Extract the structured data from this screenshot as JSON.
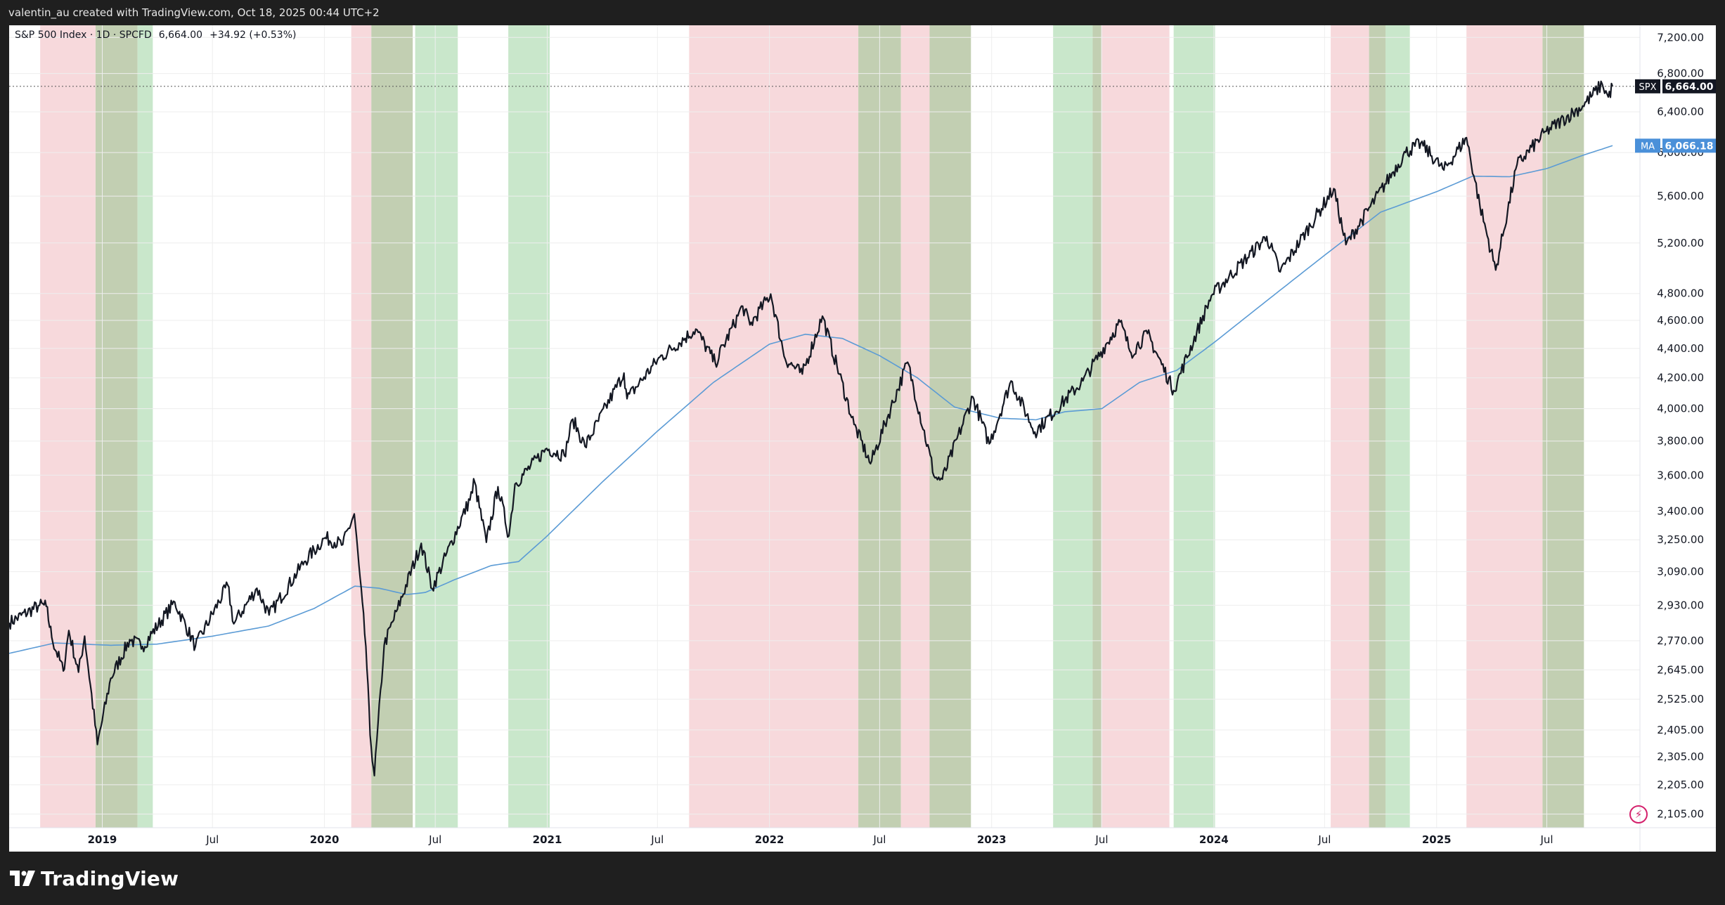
{
  "header": {
    "attribution": "valentin_au created with TradingView.com, Oct 18, 2025 00:44 UTC+2"
  },
  "legend": {
    "symbol": "S&P 500 Index · 1D · SPCFD",
    "last": "6,664.00",
    "change": "+34.92 (+0.53%)"
  },
  "footer": {
    "brand": "TradingView"
  },
  "colors": {
    "price": "#131722",
    "ma": "#5b9bd5",
    "red_band": "#f7d9dc",
    "green_band": "#c9e7cb",
    "overlap_band": "#c2cfb2",
    "grid": "#eeeeee",
    "spx_tag": "#131722",
    "ma_tag": "#4a90d9"
  },
  "chart_data": {
    "type": "line",
    "x_range": [
      "2018-08-01",
      "2025-12-01"
    ],
    "y_scale": "log",
    "y_range": [
      2060,
      7340
    ],
    "y_ticks": [
      2105,
      2205,
      2305,
      2405,
      2525,
      2645,
      2770,
      2930,
      3090,
      3250,
      3400,
      3600,
      3800,
      4000,
      4200,
      4400,
      4600,
      4800,
      5200,
      5600,
      6000,
      6400,
      6800,
      7200
    ],
    "y_tick_labels": [
      "2,105.00",
      "2,205.00",
      "2,305.00",
      "2,405.00",
      "2,525.00",
      "2,645.00",
      "2,770.00",
      "2,930.00",
      "3,090.00",
      "3,250.00",
      "3,400.00",
      "3,600.00",
      "3,800.00",
      "4,000.00",
      "4,200.00",
      "4,400.00",
      "4,600.00",
      "4,800.00",
      "5,200.00",
      "5,600.00",
      "6,000.00",
      "6,400.00",
      "6,800.00",
      "7,200.00"
    ],
    "x_ticks": [
      {
        "date": "2019-01-01",
        "label": "2019",
        "major": true
      },
      {
        "date": "2019-07-01",
        "label": "Jul",
        "major": false
      },
      {
        "date": "2020-01-01",
        "label": "2020",
        "major": true
      },
      {
        "date": "2020-07-01",
        "label": "Jul",
        "major": false
      },
      {
        "date": "2021-01-01",
        "label": "2021",
        "major": true
      },
      {
        "date": "2021-07-01",
        "label": "Jul",
        "major": false
      },
      {
        "date": "2022-01-01",
        "label": "2022",
        "major": true
      },
      {
        "date": "2022-07-01",
        "label": "Jul",
        "major": false
      },
      {
        "date": "2023-01-01",
        "label": "2023",
        "major": true
      },
      {
        "date": "2023-07-01",
        "label": "Jul",
        "major": false
      },
      {
        "date": "2024-01-01",
        "label": "2024",
        "major": true
      },
      {
        "date": "2024-07-01",
        "label": "Jul",
        "major": false
      },
      {
        "date": "2025-01-01",
        "label": "2025",
        "major": true
      },
      {
        "date": "2025-07-01",
        "label": "Jul",
        "major": false
      }
    ],
    "bands": [
      {
        "start": "2018-09-21",
        "end": "2018-12-21",
        "color": "red"
      },
      {
        "start": "2018-12-21",
        "end": "2019-02-28",
        "color": "overlap"
      },
      {
        "start": "2019-02-28",
        "end": "2019-03-25",
        "color": "green"
      },
      {
        "start": "2020-02-14",
        "end": "2020-03-18",
        "color": "red"
      },
      {
        "start": "2020-03-18",
        "end": "2020-05-25",
        "color": "overlap"
      },
      {
        "start": "2020-05-29",
        "end": "2020-08-07",
        "color": "green"
      },
      {
        "start": "2020-10-29",
        "end": "2021-01-05",
        "color": "green"
      },
      {
        "start": "2021-08-22",
        "end": "2022-05-27",
        "color": "red"
      },
      {
        "start": "2022-05-27",
        "end": "2022-08-05",
        "color": "overlap"
      },
      {
        "start": "2022-08-05",
        "end": "2022-09-21",
        "color": "red"
      },
      {
        "start": "2022-09-21",
        "end": "2022-11-28",
        "color": "overlap"
      },
      {
        "start": "2023-04-12",
        "end": "2023-06-16",
        "color": "green"
      },
      {
        "start": "2023-06-16",
        "end": "2023-06-30",
        "color": "overlap"
      },
      {
        "start": "2023-06-30",
        "end": "2023-10-20",
        "color": "red"
      },
      {
        "start": "2023-10-27",
        "end": "2024-01-03",
        "color": "green"
      },
      {
        "start": "2024-07-11",
        "end": "2024-09-12",
        "color": "red"
      },
      {
        "start": "2024-09-12",
        "end": "2024-10-09",
        "color": "overlap"
      },
      {
        "start": "2024-10-09",
        "end": "2024-11-18",
        "color": "green"
      },
      {
        "start": "2025-02-19",
        "end": "2025-06-24",
        "color": "red"
      },
      {
        "start": "2025-06-24",
        "end": "2025-08-31",
        "color": "overlap"
      }
    ],
    "series": [
      {
        "name": "SPX",
        "label": "SPX",
        "last_label": "6,664.00",
        "points": [
          [
            "2018-08-01",
            2850
          ],
          [
            "2018-09-20",
            2930
          ],
          [
            "2018-10-01",
            2925
          ],
          [
            "2018-10-10",
            2785
          ],
          [
            "2018-10-29",
            2640
          ],
          [
            "2018-11-07",
            2815
          ],
          [
            "2018-11-23",
            2635
          ],
          [
            "2018-12-03",
            2790
          ],
          [
            "2018-12-24",
            2350
          ],
          [
            "2019-01-15",
            2610
          ],
          [
            "2019-02-15",
            2775
          ],
          [
            "2019-03-08",
            2745
          ],
          [
            "2019-04-30",
            2945
          ],
          [
            "2019-06-03",
            2745
          ],
          [
            "2019-07-26",
            3025
          ],
          [
            "2019-08-05",
            2845
          ],
          [
            "2019-09-12",
            3010
          ],
          [
            "2019-10-02",
            2885
          ],
          [
            "2019-11-29",
            3140
          ],
          [
            "2020-01-02",
            3260
          ],
          [
            "2020-01-31",
            3225
          ],
          [
            "2020-02-19",
            3386
          ],
          [
            "2020-03-09",
            2745
          ],
          [
            "2020-03-16",
            2386
          ],
          [
            "2020-03-23",
            2237
          ],
          [
            "2020-04-08",
            2750
          ],
          [
            "2020-04-30",
            2912
          ],
          [
            "2020-06-08",
            3232
          ],
          [
            "2020-06-26",
            3009
          ],
          [
            "2020-08-31",
            3500
          ],
          [
            "2020-09-02",
            3580
          ],
          [
            "2020-09-23",
            3237
          ],
          [
            "2020-10-12",
            3535
          ],
          [
            "2020-10-30",
            3270
          ],
          [
            "2020-11-09",
            3550
          ],
          [
            "2020-12-31",
            3756
          ],
          [
            "2021-01-29",
            3714
          ],
          [
            "2021-02-12",
            3934
          ],
          [
            "2021-03-04",
            3768
          ],
          [
            "2021-05-07",
            4232
          ],
          [
            "2021-05-12",
            4063
          ],
          [
            "2021-07-01",
            4320
          ],
          [
            "2021-09-02",
            4537
          ],
          [
            "2021-10-04",
            4300
          ],
          [
            "2021-11-18",
            4705
          ],
          [
            "2021-11-30",
            4567
          ],
          [
            "2022-01-03",
            4796
          ],
          [
            "2022-01-27",
            4326
          ],
          [
            "2022-02-24",
            4225
          ],
          [
            "2022-03-29",
            4631
          ],
          [
            "2022-05-20",
            3901
          ],
          [
            "2022-06-16",
            3666
          ],
          [
            "2022-08-16",
            4305
          ],
          [
            "2022-09-30",
            3585
          ],
          [
            "2022-10-12",
            3577
          ],
          [
            "2022-12-01",
            4076
          ],
          [
            "2022-12-28",
            3783
          ],
          [
            "2023-02-02",
            4179
          ],
          [
            "2023-03-13",
            3855
          ],
          [
            "2023-05-31",
            4180
          ],
          [
            "2023-07-31",
            4588
          ],
          [
            "2023-08-18",
            4370
          ],
          [
            "2023-09-14",
            4505
          ],
          [
            "2023-10-27",
            4117
          ],
          [
            "2023-12-28",
            4783
          ],
          [
            "2024-03-28",
            5254
          ],
          [
            "2024-04-19",
            4967
          ],
          [
            "2024-07-16",
            5667
          ],
          [
            "2024-08-05",
            5186
          ],
          [
            "2024-11-11",
            6001
          ],
          [
            "2024-12-06",
            6090
          ],
          [
            "2025-01-13",
            5836
          ],
          [
            "2025-02-19",
            6144
          ],
          [
            "2025-03-13",
            5521
          ],
          [
            "2025-04-08",
            4982
          ],
          [
            "2025-05-13",
            5886
          ],
          [
            "2025-06-30",
            6205
          ],
          [
            "2025-08-29",
            6460
          ],
          [
            "2025-09-30",
            6688
          ],
          [
            "2025-10-10",
            6552
          ],
          [
            "2025-10-17",
            6664
          ]
        ]
      },
      {
        "name": "MA",
        "label": "MA",
        "last_label": "6,066.18",
        "points": [
          [
            "2018-08-01",
            2715
          ],
          [
            "2018-10-15",
            2760
          ],
          [
            "2019-01-15",
            2750
          ],
          [
            "2019-04-01",
            2755
          ],
          [
            "2019-07-01",
            2790
          ],
          [
            "2019-10-01",
            2835
          ],
          [
            "2019-12-15",
            2915
          ],
          [
            "2020-02-20",
            3020
          ],
          [
            "2020-03-31",
            3010
          ],
          [
            "2020-05-15",
            2980
          ],
          [
            "2020-06-15",
            2990
          ],
          [
            "2020-08-01",
            3050
          ],
          [
            "2020-10-01",
            3120
          ],
          [
            "2020-11-15",
            3140
          ],
          [
            "2021-01-01",
            3270
          ],
          [
            "2021-04-01",
            3560
          ],
          [
            "2021-07-01",
            3860
          ],
          [
            "2021-10-01",
            4170
          ],
          [
            "2022-01-01",
            4430
          ],
          [
            "2022-03-01",
            4500
          ],
          [
            "2022-05-01",
            4470
          ],
          [
            "2022-07-01",
            4350
          ],
          [
            "2022-09-01",
            4200
          ],
          [
            "2022-11-01",
            4010
          ],
          [
            "2023-01-15",
            3940
          ],
          [
            "2023-03-15",
            3930
          ],
          [
            "2023-05-01",
            3980
          ],
          [
            "2023-07-01",
            4000
          ],
          [
            "2023-09-01",
            4170
          ],
          [
            "2023-11-01",
            4250
          ],
          [
            "2024-01-01",
            4440
          ],
          [
            "2024-04-01",
            4760
          ],
          [
            "2024-07-01",
            5100
          ],
          [
            "2024-10-01",
            5460
          ],
          [
            "2025-01-01",
            5640
          ],
          [
            "2025-03-01",
            5780
          ],
          [
            "2025-05-01",
            5775
          ],
          [
            "2025-07-01",
            5850
          ],
          [
            "2025-09-01",
            5980
          ],
          [
            "2025-10-17",
            6066
          ]
        ]
      }
    ]
  }
}
